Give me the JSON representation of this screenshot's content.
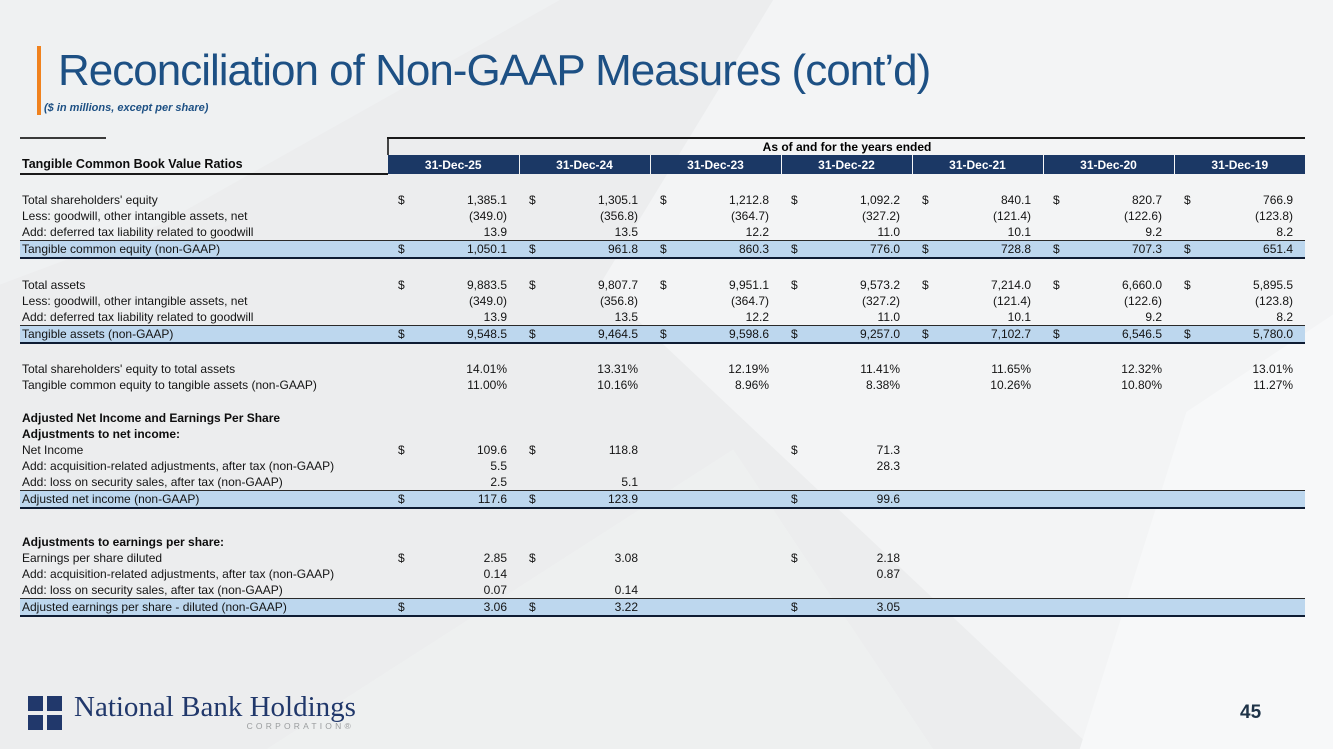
{
  "slide": {
    "title": "Reconciliation of Non-GAAP Measures (cont’d)",
    "subtitle": "($ in millions, except per share)",
    "page_number": "45"
  },
  "logo": {
    "name": "National Bank Holdings",
    "sub": "CORPORATION®"
  },
  "table": {
    "header_group": "As of and for the years ended",
    "corner_label": "Tangible Common Book Value Ratios",
    "columns": [
      "31-Dec-25",
      "31-Dec-24",
      "31-Dec-23",
      "31-Dec-22",
      "31-Dec-21",
      "31-Dec-20",
      "31-Dec-19"
    ],
    "rows": [
      {
        "type": "spacer",
        "h": 18
      },
      {
        "type": "data",
        "label": "Total shareholders' equity",
        "dollars": [
          "$",
          "$",
          "$",
          "$",
          "$",
          "$",
          "$"
        ],
        "values": [
          "1,385.1",
          "1,305.1",
          "1,212.8",
          "1,092.2",
          "840.1",
          "820.7",
          "766.9"
        ]
      },
      {
        "type": "data",
        "label": "Less: goodwill, other intangible assets, net",
        "values": [
          "(349.0)",
          "(356.8)",
          "(364.7)",
          "(327.2)",
          "(121.4)",
          "(122.6)",
          "(123.8)"
        ]
      },
      {
        "type": "data",
        "label": "Add: deferred tax liability related to goodwill",
        "underline": true,
        "values": [
          "13.9",
          "13.5",
          "12.2",
          "11.0",
          "10.1",
          "9.2",
          "8.2"
        ]
      },
      {
        "type": "total",
        "label": "Tangible common equity (non-GAAP)",
        "dollars": [
          "$",
          "$",
          "$",
          "$",
          "$",
          "$",
          "$"
        ],
        "values": [
          "1,050.1",
          "961.8",
          "860.3",
          "776.0",
          "728.8",
          "707.3",
          "651.4"
        ]
      },
      {
        "type": "spacer",
        "h": 19
      },
      {
        "type": "data",
        "label": "Total assets",
        "dollars": [
          "$",
          "$",
          "$",
          "$",
          "$",
          "$",
          "$"
        ],
        "values": [
          "9,883.5",
          "9,807.7",
          "9,951.1",
          "9,573.2",
          "7,214.0",
          "6,660.0",
          "5,895.5"
        ]
      },
      {
        "type": "data",
        "label": "Less: goodwill, other intangible assets, net",
        "values": [
          "(349.0)",
          "(356.8)",
          "(364.7)",
          "(327.2)",
          "(121.4)",
          "(122.6)",
          "(123.8)"
        ]
      },
      {
        "type": "data",
        "label": "Add: deferred tax liability related to goodwill",
        "underline": true,
        "values": [
          "13.9",
          "13.5",
          "12.2",
          "11.0",
          "10.1",
          "9.2",
          "8.2"
        ]
      },
      {
        "type": "total",
        "label": "Tangible assets (non-GAAP)",
        "dollars": [
          "$",
          "$",
          "$",
          "$",
          "$",
          "$",
          "$"
        ],
        "values": [
          "9,548.5",
          "9,464.5",
          "9,598.6",
          "9,257.0",
          "7,102.7",
          "6,546.5",
          "5,780.0"
        ]
      },
      {
        "type": "spacer",
        "h": 18
      },
      {
        "type": "data",
        "label": "Total shareholders' equity to total assets",
        "values": [
          "14.01%",
          "13.31%",
          "12.19%",
          "11.41%",
          "11.65%",
          "12.32%",
          "13.01%"
        ]
      },
      {
        "type": "data",
        "label": "Tangible common equity to tangible assets (non-GAAP)",
        "values": [
          "11.00%",
          "10.16%",
          "8.96%",
          "8.38%",
          "10.26%",
          "10.80%",
          "11.27%"
        ]
      },
      {
        "type": "spacer",
        "h": 17
      },
      {
        "type": "section",
        "label": "Adjusted Net Income and Earnings Per Share"
      },
      {
        "type": "section",
        "label": "Adjustments to net income:"
      },
      {
        "type": "data",
        "label": "Net Income",
        "dollars": [
          "$",
          "$",
          "",
          "$",
          "",
          "",
          ""
        ],
        "values": [
          "109.6",
          "118.8",
          "",
          "71.3",
          "",
          "",
          ""
        ]
      },
      {
        "type": "data",
        "label": "Add: acquisition-related adjustments, after tax (non-GAAP)",
        "values": [
          "5.5",
          "",
          "",
          "28.3",
          "",
          "",
          ""
        ]
      },
      {
        "type": "data",
        "label": "Add: loss on security sales, after tax (non-GAAP)",
        "underline": true,
        "values": [
          "2.5",
          "5.1",
          "",
          "",
          "",
          "",
          ""
        ]
      },
      {
        "type": "total",
        "label": "Adjusted net income (non-GAAP)",
        "dollars": [
          "$",
          "$",
          "",
          "$",
          "",
          "",
          ""
        ],
        "values": [
          "117.6",
          "123.9",
          "",
          "99.6",
          "",
          "",
          ""
        ]
      },
      {
        "type": "spacer",
        "h": 26
      },
      {
        "type": "section",
        "label": "Adjustments to earnings per share:"
      },
      {
        "type": "data",
        "label": "Earnings per share diluted",
        "dollars": [
          "$",
          "$",
          "",
          "$",
          "",
          "",
          ""
        ],
        "values": [
          "2.85",
          "3.08",
          "",
          "2.18",
          "",
          "",
          ""
        ]
      },
      {
        "type": "data",
        "label": "Add: acquisition-related adjustments, after tax (non-GAAP)",
        "values": [
          "0.14",
          "",
          "",
          "0.87",
          "",
          "",
          ""
        ]
      },
      {
        "type": "data",
        "label": "Add: loss on security sales, after tax (non-GAAP)",
        "underline": true,
        "values": [
          "0.07",
          "0.14",
          "",
          "",
          "",
          "",
          ""
        ]
      },
      {
        "type": "total",
        "label": "Adjusted earnings per share - diluted (non-GAAP)",
        "dollars": [
          "$",
          "$",
          "",
          "$",
          "",
          "",
          ""
        ],
        "values": [
          "3.06",
          "3.22",
          "",
          "3.05",
          "",
          "",
          ""
        ]
      }
    ]
  },
  "colors": {
    "header_navy": "#1B3865",
    "highlight_blue": "#BDD7EE",
    "title_blue": "#1D5084",
    "accent_orange": "#F0821E",
    "logo_navy": "#21386B",
    "page_text": "#1E3348"
  }
}
